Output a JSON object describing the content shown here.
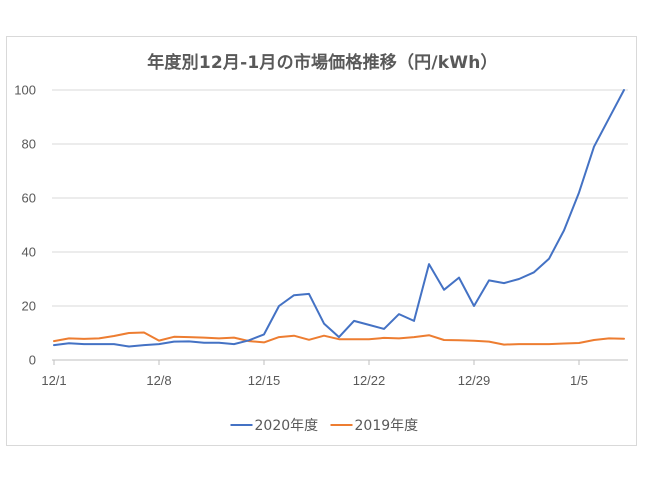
{
  "chart_data": {
    "type": "line",
    "title": "年度別12月-1月の市場価格推移（円/kWh）",
    "ylim": [
      0,
      100
    ],
    "yticks": [
      0,
      20,
      40,
      60,
      80,
      100
    ],
    "grid": true,
    "legend_position": "bottom",
    "x_tick_labels": [
      "12/1",
      "12/8",
      "12/15",
      "12/22",
      "12/29",
      "1/5"
    ],
    "x_tick_indices": [
      0,
      7,
      14,
      21,
      28,
      35
    ],
    "series": [
      {
        "name": "2020年度",
        "color": "#4472c4",
        "values": [
          5.5,
          6.2,
          5.9,
          5.9,
          5.9,
          5.0,
          5.5,
          5.9,
          6.8,
          6.9,
          6.4,
          6.4,
          5.9,
          7.3,
          9.5,
          20.0,
          24.0,
          24.5,
          13.5,
          8.5,
          14.5,
          13.0,
          11.5,
          17.0,
          14.5,
          35.5,
          26.0,
          30.5,
          20.0,
          29.5,
          28.5,
          30.0,
          32.5,
          37.5,
          48.0,
          62.0,
          79.0,
          89.5,
          100.0
        ]
      },
      {
        "name": "2019年度",
        "color": "#ed7d31",
        "values": [
          7.0,
          8.0,
          7.8,
          8.0,
          8.9,
          10.0,
          10.2,
          7.2,
          8.6,
          8.5,
          8.3,
          8.0,
          8.3,
          7.0,
          6.5,
          8.5,
          9.0,
          7.5,
          9.0,
          7.7,
          7.7,
          7.7,
          8.2,
          8.0,
          8.5,
          9.2,
          7.4,
          7.3,
          7.1,
          6.8,
          5.7,
          5.9,
          5.9,
          5.9,
          6.1,
          6.3,
          7.4,
          8.0,
          7.9
        ]
      }
    ]
  }
}
